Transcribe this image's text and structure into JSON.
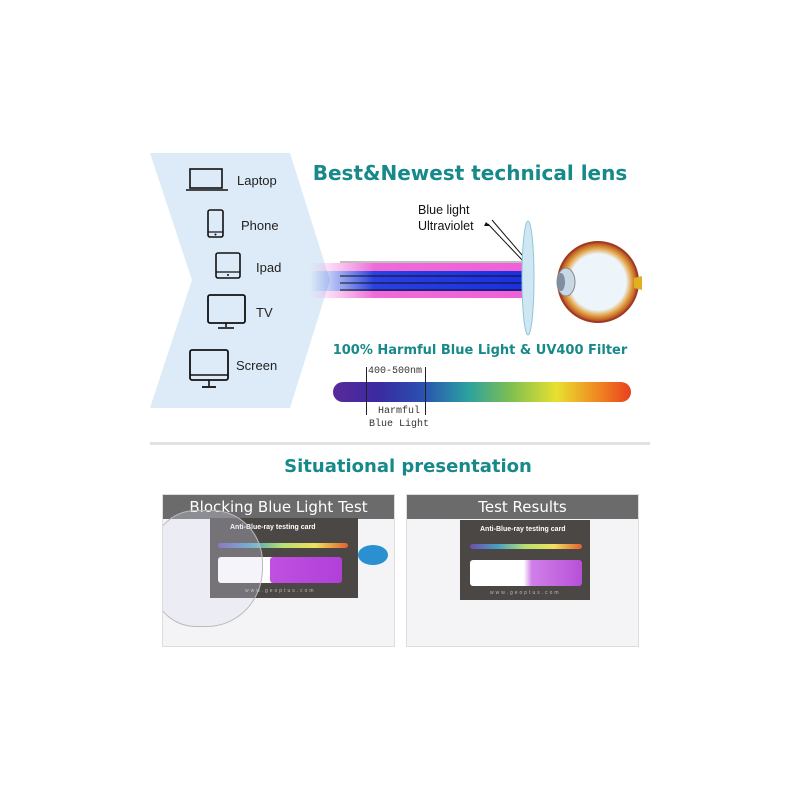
{
  "top": {
    "title": "Best&Newest technical lens",
    "devices": [
      {
        "label": "Laptop",
        "icon": "laptop-icon"
      },
      {
        "label": "Phone",
        "icon": "phone-icon"
      },
      {
        "label": "Ipad",
        "icon": "tablet-icon"
      },
      {
        "label": "TV",
        "icon": "tv-icon"
      },
      {
        "label": "Screen",
        "icon": "monitor-icon"
      }
    ],
    "reflected_labels": [
      "Blue light",
      "Ultraviolet"
    ],
    "filter_title": "100% Harmful Blue Light & UV400 Filter",
    "spectrum_range": "400-500nm",
    "spectrum_caption": [
      "Harmful",
      "Blue Light"
    ]
  },
  "bottom": {
    "title": "Situational presentation",
    "panels": [
      {
        "header": "Blocking Blue Light Test",
        "card_title": "Anti-Blue-ray testing card",
        "card_url": "www.geoptus.com"
      },
      {
        "header": "Test Results",
        "card_title": "Anti-Blue-ray testing card",
        "card_url": "www.geoptus.com"
      }
    ]
  },
  "colors": {
    "accent": "#17898a",
    "panel_bg": "#dcebf7",
    "header_gray": "#6b6b6b"
  }
}
